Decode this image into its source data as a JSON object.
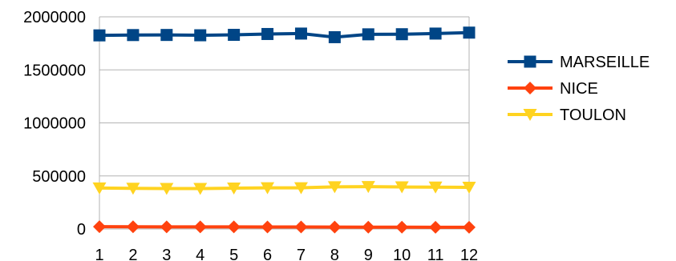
{
  "chart_data": {
    "type": "line",
    "title": "",
    "xlabel": "",
    "ylabel": "",
    "x": [
      "1",
      "2",
      "3",
      "4",
      "5",
      "6",
      "7",
      "8",
      "9",
      "10",
      "11",
      "12"
    ],
    "ylim": [
      0,
      2000000
    ],
    "yticks": [
      0,
      500000,
      1000000,
      1500000,
      2000000
    ],
    "grid": true,
    "legend_position": "right",
    "series": [
      {
        "name": "MARSEILLE",
        "color": "#004586",
        "marker": "square",
        "values": [
          1825000,
          1828000,
          1829000,
          1826000,
          1830000,
          1838000,
          1842000,
          1808000,
          1835000,
          1836000,
          1842000,
          1851000
        ]
      },
      {
        "name": "NICE",
        "color": "#ff420e",
        "marker": "diamond",
        "values": [
          22000,
          21000,
          20000,
          20000,
          20000,
          19000,
          19000,
          18000,
          17000,
          17000,
          16000,
          16000
        ]
      },
      {
        "name": "TOULON",
        "color": "#ffd320",
        "marker": "triangle-down",
        "values": [
          386000,
          383000,
          381000,
          381000,
          385000,
          388000,
          388000,
          397000,
          399000,
          396000,
          394000,
          392000
        ]
      }
    ]
  }
}
